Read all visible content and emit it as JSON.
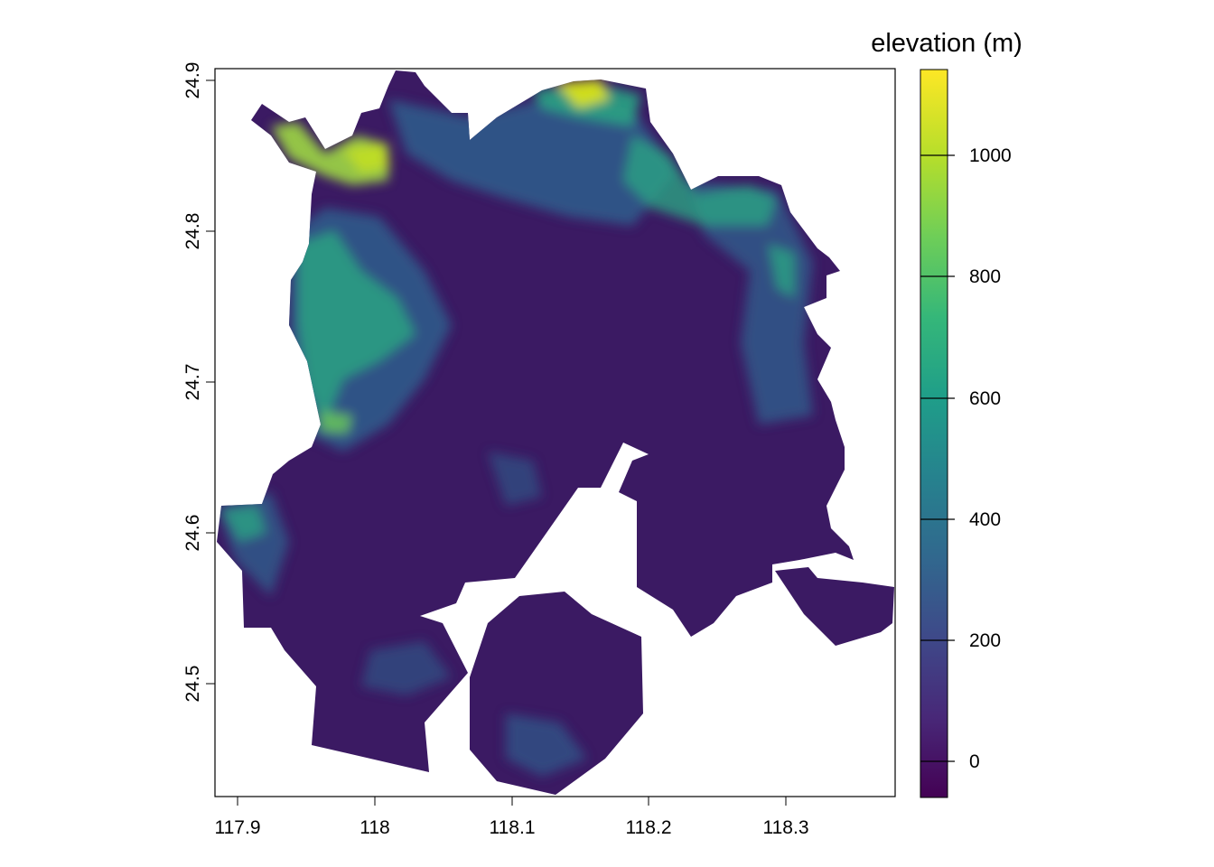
{
  "map": {
    "legend_title": "elevation (m)",
    "x_ticks": [
      "117.9",
      "118",
      "118.1",
      "118.2",
      "118.3"
    ],
    "y_ticks": [
      "24.5",
      "24.6",
      "24.7",
      "24.8",
      "24.9"
    ],
    "colorbar": {
      "ticks": [
        "0",
        "200",
        "400",
        "600",
        "800",
        "1000"
      ],
      "palette": "viridis",
      "range_m": [
        -55,
        1145
      ],
      "stops": [
        "#440154",
        "#482878",
        "#3e4989",
        "#31688e",
        "#26828e",
        "#1f9e89",
        "#35b779",
        "#6ece58",
        "#b5de2b",
        "#fde725"
      ]
    },
    "raster_colors": {
      "lowland": "#3b1a63",
      "hill": "#2e5d8c",
      "upland": "#2aa283",
      "highland": "#9fd842"
    }
  }
}
